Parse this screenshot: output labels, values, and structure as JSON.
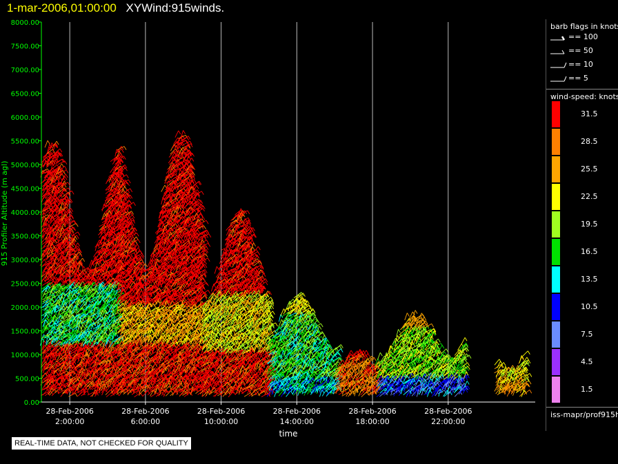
{
  "header": {
    "timestamp": "1-mar-2006,01:00:00",
    "title": "XYWind:915winds."
  },
  "legend": {
    "barb_title": "barb flags in knots",
    "barbs": [
      {
        "label": "== 100",
        "knots": 100
      },
      {
        "label": "== 50",
        "knots": 50
      },
      {
        "label": "== 10",
        "knots": 10
      },
      {
        "label": "== 5",
        "knots": 5
      }
    ],
    "speed_title": "wind-speed: knots",
    "speed_bins": [
      {
        "label": "31.5",
        "color": "#ff0000"
      },
      {
        "label": "28.5",
        "color": "#ff8000"
      },
      {
        "label": "25.5",
        "color": "#ffa500"
      },
      {
        "label": "22.5",
        "color": "#ffff00"
      },
      {
        "label": "19.5",
        "color": "#a0ff20"
      },
      {
        "label": "16.5",
        "color": "#00e000"
      },
      {
        "label": "13.5",
        "color": "#00ffff"
      },
      {
        "label": "10.5",
        "color": "#0000ff"
      },
      {
        "label": "7.5",
        "color": "#6a8cff"
      },
      {
        "label": "4.5",
        "color": "#9b30ff"
      },
      {
        "label": "1.5",
        "color": "#ee82ee"
      }
    ],
    "source": "iss-mapr/prof915h"
  },
  "disclaimer": "REAL-TIME DATA, NOT CHECKED FOR QUALITY",
  "chart_data": {
    "type": "scatter",
    "subtype": "wind-barb time-height",
    "title": "XYWind:915winds.",
    "xlabel": "time",
    "ylabel": "915 Profiler Altitude (m agl)",
    "ylim": [
      0,
      8000
    ],
    "xlim_hours": [
      0.5,
      26.6
    ],
    "yticks": [
      "0.00",
      "500.00",
      "1000.00",
      "1500.00",
      "2000.00",
      "2500.00",
      "3000.00",
      "3500.00",
      "4000.00",
      "4500.00",
      "5000.00",
      "5500.00",
      "6000.00",
      "6500.00",
      "7000.00",
      "7500.00",
      "8000.00"
    ],
    "xticks": [
      {
        "date": "28-Feb-2006",
        "time": "2:00:00",
        "hour": 2
      },
      {
        "date": "28-Feb-2006",
        "time": "6:00:00",
        "hour": 6
      },
      {
        "date": "28-Feb-2006",
        "time": "10:00:00",
        "hour": 10
      },
      {
        "date": "28-Feb-2006",
        "time": "14:00:00",
        "hour": 14
      },
      {
        "date": "28-Feb-2006",
        "time": "18:00:00",
        "hour": 18
      },
      {
        "date": "28-Feb-2006",
        "time": "22:00:00",
        "hour": 22
      }
    ],
    "grid": true,
    "profiles": [
      {
        "start_hour": 0.5,
        "end_hour": 4.5,
        "top_m": 5400,
        "low_speed": 31.5,
        "mid_speed": 16.5,
        "mid_band_m": [
          1200,
          2400
        ],
        "upper_speed": 31.5
      },
      {
        "start_hour": 4.5,
        "end_hour": 9.0,
        "top_m": 5600,
        "low_speed": 31.5,
        "mid_speed": 25.5,
        "mid_band_m": [
          1200,
          2000
        ],
        "upper_speed": 31.5
      },
      {
        "start_hour": 9.0,
        "end_hour": 12.5,
        "top_m": 4000,
        "low_speed": 31.5,
        "mid_speed": 22.5,
        "mid_band_m": [
          1000,
          2200
        ],
        "upper_speed": 31.5
      },
      {
        "start_hour": 12.5,
        "end_hour": 16.0,
        "top_m": 2200,
        "low_speed": 13.5,
        "mid_speed": 16.5,
        "mid_band_m": [
          500,
          1800
        ],
        "upper_speed": 22.5
      },
      {
        "start_hour": 16.0,
        "end_hour": 18.2,
        "top_m": 1000,
        "low_speed": 31.5,
        "mid_speed": 28.5,
        "mid_band_m": [
          100,
          900
        ],
        "upper_speed": 31.5
      },
      {
        "start_hour": 18.2,
        "end_hour": 22.8,
        "top_m": 1800,
        "low_speed": 10.5,
        "mid_speed": 19.5,
        "mid_band_m": [
          500,
          1500
        ],
        "upper_speed": 25.5
      },
      {
        "start_hour": 24.5,
        "end_hour": 26.0,
        "top_m": 1300,
        "low_speed": 25.5,
        "mid_speed": 22.5,
        "mid_band_m": [
          400,
          1200
        ],
        "upper_speed": 25.5
      }
    ]
  }
}
